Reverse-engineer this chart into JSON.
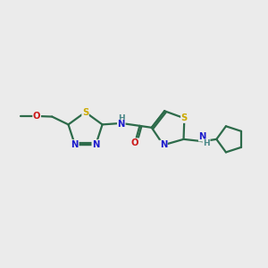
{
  "background_color": "#ebebeb",
  "bond_color": "#2d6b4a",
  "atom_colors": {
    "C": "#2d6b4a",
    "N": "#1a1acc",
    "O": "#cc1a1a",
    "S": "#ccaa00",
    "H": "#4a8888"
  },
  "figsize": [
    3.0,
    3.0
  ],
  "dpi": 100,
  "lw": 1.6
}
